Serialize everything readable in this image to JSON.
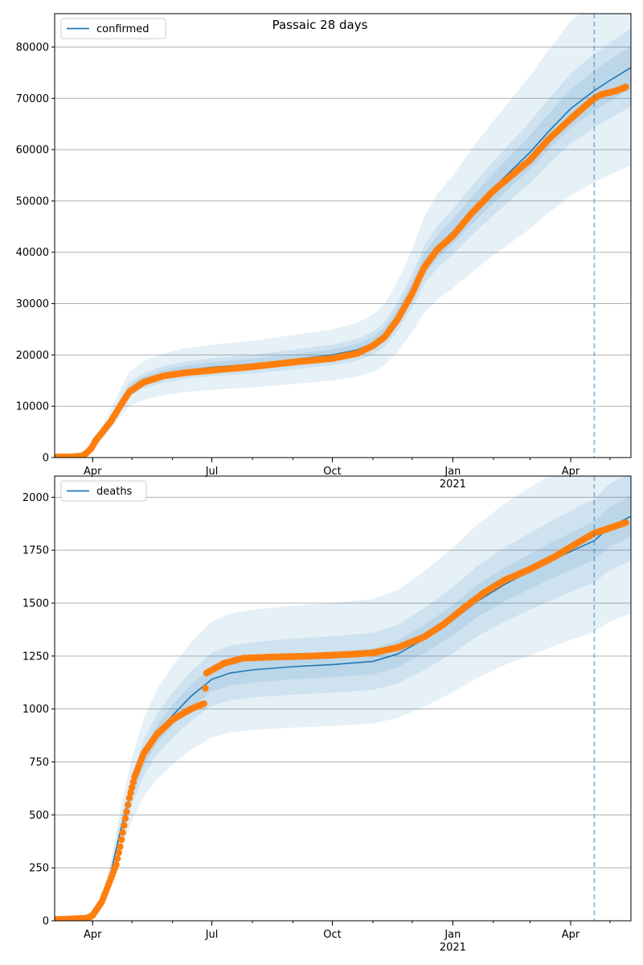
{
  "figure": {
    "title": "Passaic 28 days"
  },
  "chart_data": [
    {
      "type": "line",
      "name": "confirmed-panel",
      "legend": {
        "label": "confirmed",
        "position": "top-left"
      },
      "grid": "y-major",
      "xlim": [
        "2020-03-03",
        "2021-05-17"
      ],
      "ylim": [
        0,
        86500
      ],
      "yticks": [
        0,
        10000,
        20000,
        30000,
        40000,
        50000,
        60000,
        70000,
        80000
      ],
      "xticks": [
        {
          "date": "2020-04-01",
          "label": "Apr"
        },
        {
          "date": "2020-07-01",
          "label": "Jul"
        },
        {
          "date": "2020-10-01",
          "label": "Oct"
        },
        {
          "date": "2021-01-01",
          "label": "Jan",
          "sublabel": "2021"
        },
        {
          "date": "2021-04-01",
          "label": "Apr"
        }
      ],
      "vline_date": "2021-04-19",
      "model": [
        [
          "2020-03-03",
          0
        ],
        [
          "2020-03-20",
          100
        ],
        [
          "2020-03-27",
          700
        ],
        [
          "2020-04-01",
          2000
        ],
        [
          "2020-04-08",
          4800
        ],
        [
          "2020-04-15",
          7500
        ],
        [
          "2020-04-22",
          10600
        ],
        [
          "2020-04-29",
          13300
        ],
        [
          "2020-05-10",
          15000
        ],
        [
          "2020-05-25",
          16200
        ],
        [
          "2020-06-10",
          17000
        ],
        [
          "2020-07-01",
          17600
        ],
        [
          "2020-08-01",
          18200
        ],
        [
          "2020-09-01",
          19100
        ],
        [
          "2020-10-01",
          20000
        ],
        [
          "2020-10-20",
          21000
        ],
        [
          "2020-11-01",
          22300
        ],
        [
          "2020-11-10",
          24000
        ],
        [
          "2020-11-20",
          27500
        ],
        [
          "2020-12-01",
          32500
        ],
        [
          "2020-12-10",
          37500
        ],
        [
          "2020-12-20",
          41000
        ],
        [
          "2021-01-01",
          44000
        ],
        [
          "2021-01-15",
          48000
        ],
        [
          "2021-02-01",
          52500
        ],
        [
          "2021-02-15",
          56000
        ],
        [
          "2021-03-01",
          59500
        ],
        [
          "2021-03-15",
          63500
        ],
        [
          "2021-04-01",
          68000
        ],
        [
          "2021-04-19",
          71500
        ],
        [
          "2021-05-01",
          73500
        ],
        [
          "2021-05-17",
          76000
        ]
      ],
      "band_widths": [
        0.25,
        0.1,
        0.055
      ],
      "band_floor": [
        700,
        400,
        200
      ],
      "observed": [
        [
          "2020-03-03",
          100
        ],
        [
          "2020-03-15",
          120
        ],
        [
          "2020-03-24",
          300
        ],
        [
          "2020-03-27",
          800
        ],
        [
          "2020-03-31",
          1800
        ],
        [
          "2020-04-03",
          3200
        ],
        [
          "2020-04-08",
          4800
        ],
        [
          "2020-04-15",
          7100
        ],
        [
          "2020-04-22",
          10000
        ],
        [
          "2020-04-29",
          12800
        ],
        [
          "2020-05-10",
          14700
        ],
        [
          "2020-05-25",
          15900
        ],
        [
          "2020-06-10",
          16500
        ],
        [
          "2020-07-01",
          17000
        ],
        [
          "2020-08-01",
          17700
        ],
        [
          "2020-09-01",
          18600
        ],
        [
          "2020-10-01",
          19300
        ],
        [
          "2020-10-20",
          20300
        ],
        [
          "2020-11-01",
          21800
        ],
        [
          "2020-11-10",
          23500
        ],
        [
          "2020-11-20",
          27000
        ],
        [
          "2020-12-01",
          32000
        ],
        [
          "2020-12-10",
          37000
        ],
        [
          "2020-12-20",
          40500
        ],
        [
          "2021-01-01",
          43200
        ],
        [
          "2021-01-15",
          47500
        ],
        [
          "2021-02-01",
          52000
        ],
        [
          "2021-02-15",
          55000
        ],
        [
          "2021-03-01",
          58000
        ],
        [
          "2021-03-15",
          62000
        ],
        [
          "2021-04-01",
          66000
        ],
        [
          "2021-04-12",
          68500
        ],
        [
          "2021-04-19",
          70000
        ],
        [
          "2021-04-25",
          70800
        ],
        [
          "2021-05-05",
          71400
        ],
        [
          "2021-05-13",
          72200
        ]
      ]
    },
    {
      "type": "line",
      "name": "deaths-panel",
      "legend": {
        "label": "deaths",
        "position": "top-left"
      },
      "grid": "y-major",
      "xlim": [
        "2020-03-03",
        "2021-05-17"
      ],
      "ylim": [
        0,
        2100
      ],
      "yticks": [
        0,
        250,
        500,
        750,
        1000,
        1250,
        1500,
        1750,
        2000
      ],
      "xticks": [
        {
          "date": "2020-04-01",
          "label": "Apr"
        },
        {
          "date": "2020-07-01",
          "label": "Jul"
        },
        {
          "date": "2020-10-01",
          "label": "Oct"
        },
        {
          "date": "2021-01-01",
          "label": "Jan",
          "sublabel": "2021"
        },
        {
          "date": "2021-04-01",
          "label": "Apr"
        }
      ],
      "vline_date": "2021-04-19",
      "model": [
        [
          "2020-03-03",
          0
        ],
        [
          "2020-03-25",
          5
        ],
        [
          "2020-04-01",
          30
        ],
        [
          "2020-04-08",
          90
        ],
        [
          "2020-04-15",
          230
        ],
        [
          "2020-04-22",
          420
        ],
        [
          "2020-05-01",
          620
        ],
        [
          "2020-05-10",
          770
        ],
        [
          "2020-05-20",
          880
        ],
        [
          "2020-06-01",
          970
        ],
        [
          "2020-06-15",
          1060
        ],
        [
          "2020-07-01",
          1140
        ],
        [
          "2020-07-15",
          1170
        ],
        [
          "2020-08-01",
          1185
        ],
        [
          "2020-09-01",
          1200
        ],
        [
          "2020-10-01",
          1210
        ],
        [
          "2020-11-01",
          1225
        ],
        [
          "2020-11-20",
          1260
        ],
        [
          "2020-12-10",
          1330
        ],
        [
          "2021-01-01",
          1420
        ],
        [
          "2021-01-20",
          1510
        ],
        [
          "2021-02-10",
          1590
        ],
        [
          "2021-03-01",
          1650
        ],
        [
          "2021-03-20",
          1710
        ],
        [
          "2021-04-19",
          1795
        ],
        [
          "2021-05-01",
          1860
        ],
        [
          "2021-05-17",
          1910
        ]
      ],
      "band_widths": [
        0.24,
        0.11,
        0.05
      ],
      "band_floor": [
        20,
        10,
        5
      ],
      "observed": [
        [
          "2020-03-03",
          5
        ],
        [
          "2020-03-28",
          12
        ],
        [
          "2020-04-01",
          25
        ],
        [
          "2020-04-08",
          90
        ],
        [
          "2020-04-15",
          200
        ],
        [
          "2020-04-19",
          265
        ],
        [
          "2020-04-22",
          350
        ],
        [
          "2020-04-25",
          450
        ],
        [
          "2020-04-29",
          580
        ],
        [
          "2020-05-03",
          680
        ],
        [
          "2020-05-10",
          790
        ],
        [
          "2020-05-20",
          880
        ],
        [
          "2020-06-01",
          950
        ],
        [
          "2020-06-15",
          1000
        ],
        [
          "2020-06-25",
          1025
        ],
        [
          "2020-06-27",
          1170
        ],
        [
          "2020-07-10",
          1215
        ],
        [
          "2020-07-25",
          1240
        ],
        [
          "2020-08-15",
          1245
        ],
        [
          "2020-09-15",
          1250
        ],
        [
          "2020-10-15",
          1258
        ],
        [
          "2020-11-01",
          1265
        ],
        [
          "2020-11-20",
          1290
        ],
        [
          "2020-12-10",
          1340
        ],
        [
          "2020-12-25",
          1400
        ],
        [
          "2021-01-10",
          1480
        ],
        [
          "2021-01-25",
          1550
        ],
        [
          "2021-02-10",
          1610
        ],
        [
          "2021-03-01",
          1660
        ],
        [
          "2021-03-20",
          1720
        ],
        [
          "2021-04-05",
          1780
        ],
        [
          "2021-04-19",
          1830
        ],
        [
          "2021-05-01",
          1855
        ],
        [
          "2021-05-13",
          1880
        ]
      ]
    }
  ]
}
